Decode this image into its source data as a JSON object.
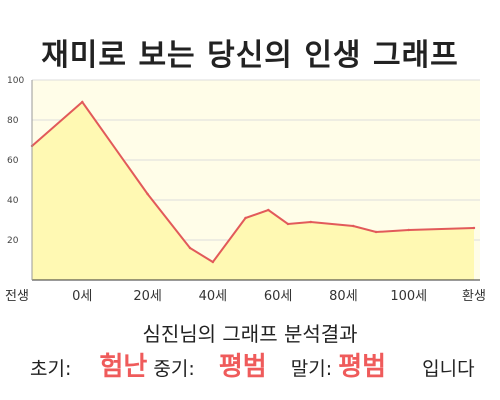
{
  "title": "재미로 보는 당신의 인생 그래프",
  "analysis_title": "심진님의 그래프 분석결과",
  "result": {
    "early_label": "초기:",
    "early_value": "험난",
    "mid_label": "중기:",
    "mid_value": "평범",
    "late_label": "말기:",
    "late_value": "평범",
    "suffix": "입니다"
  },
  "colors": {
    "line": "#e25a5a",
    "fill": "#fff9b3",
    "plot_background": "#fffde8",
    "value_text": "#ef5b5b"
  },
  "chart_data": {
    "type": "area",
    "title": "",
    "xlabel": "",
    "ylabel": "",
    "ylim": [
      0,
      100
    ],
    "yticks": [
      20,
      40,
      60,
      80,
      100
    ],
    "xticks": [
      "전생",
      "0세",
      "20세",
      "40세",
      "60세",
      "80세",
      "100세",
      "환생"
    ],
    "grid": true,
    "x": [
      "전생",
      "0세",
      "20세",
      "33세",
      "40세",
      "50세",
      "57세",
      "63세",
      "70세",
      "83세",
      "90세",
      "100세",
      "환생"
    ],
    "values": [
      67,
      89,
      43,
      16,
      9,
      31,
      35,
      28,
      29,
      27,
      24,
      25,
      26
    ]
  }
}
